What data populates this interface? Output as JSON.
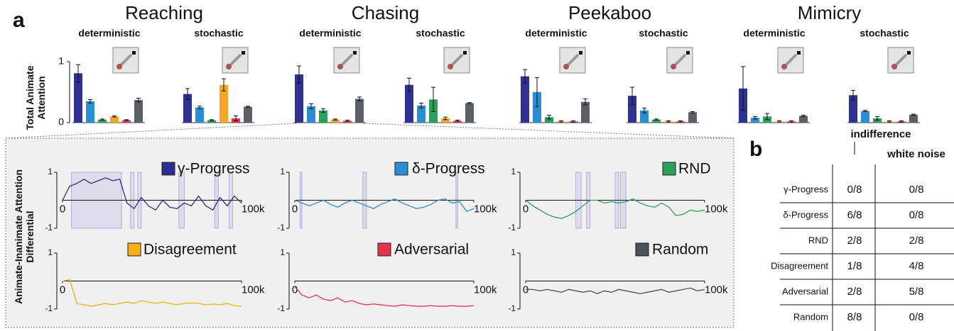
{
  "panel_labels": [
    "a",
    "b"
  ],
  "task_titles": [
    "Reaching",
    "Chasing",
    "Peekaboo",
    "Mimicry"
  ],
  "chart_data": [
    {
      "type": "bar",
      "title": "deterministic",
      "ylabel": "Total Animate Attention",
      "ylim": [
        0,
        1
      ],
      "yticks": [
        0,
        1
      ],
      "values": [
        0.81,
        0.35,
        0.05,
        0.1,
        0.04,
        0.37
      ],
      "errors": [
        0.14,
        0.03,
        0.01,
        0.01,
        0.01,
        0.03
      ],
      "colors": [
        "#2e3192",
        "#2a8fd0",
        "#2ca05a",
        "#f5a623",
        "#e5344d",
        "#5a6066"
      ]
    },
    {
      "type": "bar",
      "title": "stochastic",
      "ylim": [
        0,
        1
      ],
      "values": [
        0.47,
        0.25,
        0.04,
        0.62,
        0.07,
        0.26
      ],
      "errors": [
        0.09,
        0.02,
        0.01,
        0.1,
        0.04,
        0.01
      ],
      "colors": [
        "#2e3192",
        "#2a8fd0",
        "#2ca05a",
        "#f5a623",
        "#e5344d",
        "#5a6066"
      ]
    },
    {
      "type": "bar",
      "title": "deterministic",
      "ylim": [
        0,
        1
      ],
      "values": [
        0.79,
        0.27,
        0.2,
        0.05,
        0.03,
        0.39
      ],
      "errors": [
        0.14,
        0.04,
        0.03,
        0.01,
        0.01,
        0.03
      ],
      "colors": [
        "#2e3192",
        "#2a8fd0",
        "#2ca05a",
        "#f5a623",
        "#e5344d",
        "#5a6066"
      ]
    },
    {
      "type": "bar",
      "title": "stochastic",
      "ylim": [
        0,
        1
      ],
      "values": [
        0.62,
        0.28,
        0.38,
        0.07,
        0.03,
        0.32
      ],
      "errors": [
        0.11,
        0.04,
        0.2,
        0.02,
        0.01,
        0.01
      ],
      "colors": [
        "#2e3192",
        "#2a8fd0",
        "#2ca05a",
        "#f5a623",
        "#e5344d",
        "#5a6066"
      ]
    },
    {
      "type": "bar",
      "title": "deterministic",
      "ylim": [
        0,
        1
      ],
      "values": [
        0.76,
        0.5,
        0.09,
        0.02,
        0.02,
        0.34
      ],
      "errors": [
        0.11,
        0.24,
        0.03,
        0.01,
        0.01,
        0.05
      ],
      "colors": [
        "#2e3192",
        "#2a8fd0",
        "#2ca05a",
        "#f5a623",
        "#e5344d",
        "#5a6066"
      ]
    },
    {
      "type": "bar",
      "title": "stochastic",
      "ylim": [
        0,
        1
      ],
      "values": [
        0.44,
        0.2,
        0.05,
        0.02,
        0.02,
        0.17
      ],
      "errors": [
        0.14,
        0.04,
        0.01,
        0.01,
        0.01,
        0.01
      ],
      "colors": [
        "#2e3192",
        "#2a8fd0",
        "#2ca05a",
        "#f5a623",
        "#e5344d",
        "#5a6066"
      ]
    },
    {
      "type": "bar",
      "title": "deterministic",
      "ylim": [
        0,
        1
      ],
      "values": [
        0.56,
        0.08,
        0.1,
        0.02,
        0.02,
        0.11
      ],
      "errors": [
        0.36,
        0.02,
        0.05,
        0.01,
        0.01,
        0.01
      ],
      "colors": [
        "#2e3192",
        "#2a8fd0",
        "#2ca05a",
        "#f5a623",
        "#e5344d",
        "#5a6066"
      ]
    },
    {
      "type": "bar",
      "title": "stochastic",
      "ylim": [
        0,
        1
      ],
      "values": [
        0.45,
        0.19,
        0.07,
        0.02,
        0.02,
        0.13
      ],
      "errors": [
        0.08,
        0.01,
        0.03,
        0.01,
        0.01,
        0.01
      ],
      "colors": [
        "#2e3192",
        "#2a8fd0",
        "#2ca05a",
        "#f5a623",
        "#e5344d",
        "#5a6066"
      ]
    },
    {
      "type": "line",
      "ylabel": "Animate-Inanimate Attention Differential",
      "xlim": [
        0,
        100000
      ],
      "ylim": [
        -1,
        1
      ],
      "yticks": [
        -1,
        1
      ],
      "xticks": [
        0,
        {
          "value": 100000,
          "label": "100k"
        }
      ],
      "x": [
        0,
        4000,
        8000,
        12000,
        16000,
        20000,
        24000,
        28000,
        32000,
        36000,
        40000,
        44000,
        48000,
        52000,
        56000,
        60000,
        64000,
        68000,
        72000,
        76000,
        80000,
        84000,
        88000,
        92000,
        96000,
        100000
      ],
      "series": [
        {
          "name": "γ-Progress",
          "color": "#2e2d8f",
          "values": [
            0,
            0.5,
            0.6,
            0.75,
            0.6,
            0.7,
            0.8,
            0.7,
            0.75,
            -0.1,
            -0.3,
            0.1,
            -0.2,
            -0.35,
            0.0,
            -0.25,
            -0.3,
            -0.1,
            -0.2,
            0.15,
            -0.2,
            -0.35,
            0.1,
            -0.2,
            0.15,
            -0.1
          ]
        }
      ],
      "highlights": [
        [
          5000,
          33000
        ],
        [
          38000,
          40000
        ],
        [
          42000,
          44000
        ],
        [
          65000,
          68000
        ],
        [
          85000,
          87000
        ],
        [
          93000,
          95000
        ]
      ]
    },
    {
      "type": "line",
      "xlim": [
        0,
        100000
      ],
      "ylim": [
        -1,
        1
      ],
      "yticks": [
        -1,
        1
      ],
      "xticks": [
        0,
        {
          "value": 100000,
          "label": "100k"
        }
      ],
      "x": [
        0,
        4000,
        8000,
        12000,
        16000,
        20000,
        24000,
        28000,
        32000,
        36000,
        40000,
        44000,
        48000,
        52000,
        56000,
        60000,
        64000,
        68000,
        72000,
        76000,
        80000,
        84000,
        88000,
        92000,
        96000,
        100000
      ],
      "series": [
        {
          "name": "δ-Progress",
          "color": "#2a8fd0",
          "values": [
            0,
            -0.1,
            -0.2,
            -0.1,
            0,
            -0.15,
            -0.25,
            -0.1,
            0.0,
            -0.1,
            -0.2,
            -0.3,
            -0.15,
            -0.05,
            0.05,
            -0.1,
            -0.2,
            -0.3,
            -0.25,
            -0.15,
            0,
            0.05,
            -0.1,
            -0.05,
            -0.4,
            -0.3
          ]
        }
      ],
      "highlights": [
        [
          3000,
          4000
        ],
        [
          38000,
          40000
        ],
        [
          90000,
          91000
        ]
      ]
    },
    {
      "type": "line",
      "xlim": [
        0,
        100000
      ],
      "ylim": [
        -1,
        1
      ],
      "yticks": [
        -1,
        1
      ],
      "xticks": [
        0,
        {
          "value": 100000,
          "label": "100k"
        }
      ],
      "x": [
        0,
        4000,
        8000,
        12000,
        16000,
        20000,
        24000,
        28000,
        32000,
        36000,
        40000,
        44000,
        48000,
        52000,
        56000,
        60000,
        64000,
        68000,
        72000,
        76000,
        80000,
        84000,
        88000,
        92000,
        96000,
        100000
      ],
      "series": [
        {
          "name": "RND",
          "color": "#2ca05a",
          "values": [
            0,
            -0.2,
            -0.35,
            -0.5,
            -0.6,
            -0.65,
            -0.55,
            -0.4,
            -0.2,
            0,
            0.0,
            -0.1,
            -0.05,
            -0.1,
            -0.05,
            0.05,
            -0.1,
            -0.2,
            -0.25,
            -0.1,
            -0.25,
            -0.55,
            -0.5,
            -0.35,
            -0.4,
            -0.35
          ]
        }
      ],
      "highlights": [
        [
          28000,
          31000
        ],
        [
          34000,
          36000
        ],
        [
          50000,
          52000
        ],
        [
          53000,
          56000
        ]
      ]
    },
    {
      "type": "line",
      "xlim": [
        0,
        100000
      ],
      "ylim": [
        -1,
        1
      ],
      "yticks": [
        -1,
        1
      ],
      "xticks": [
        0,
        {
          "value": 100000,
          "label": "100k"
        }
      ],
      "x": [
        0,
        4000,
        8000,
        12000,
        16000,
        20000,
        24000,
        28000,
        32000,
        36000,
        40000,
        44000,
        48000,
        52000,
        56000,
        60000,
        64000,
        68000,
        72000,
        76000,
        80000,
        84000,
        88000,
        92000,
        96000,
        100000
      ],
      "series": [
        {
          "name": "Disagreement",
          "color": "#f5b014",
          "values": [
            0,
            0.05,
            -0.8,
            -0.85,
            -0.9,
            -0.85,
            -0.8,
            -0.85,
            -0.8,
            -0.75,
            -0.8,
            -0.7,
            -0.75,
            -0.8,
            -0.75,
            -0.8,
            -0.85,
            -0.8,
            -0.78,
            -0.8,
            -0.85,
            -0.82,
            -0.85,
            -0.8,
            -0.88,
            -0.9
          ]
        }
      ]
    },
    {
      "type": "line",
      "xlim": [
        0,
        100000
      ],
      "ylim": [
        -1,
        1
      ],
      "yticks": [
        -1,
        1
      ],
      "xticks": [
        0,
        {
          "value": 100000,
          "label": "100k"
        }
      ],
      "x": [
        0,
        4000,
        8000,
        12000,
        16000,
        20000,
        24000,
        28000,
        32000,
        36000,
        40000,
        44000,
        48000,
        52000,
        56000,
        60000,
        64000,
        68000,
        72000,
        76000,
        80000,
        84000,
        88000,
        92000,
        96000,
        100000
      ],
      "series": [
        {
          "name": "Adversarial",
          "color": "#e5344d",
          "values": [
            -0.2,
            -0.5,
            -0.6,
            -0.5,
            -0.65,
            -0.7,
            -0.6,
            -0.75,
            -0.7,
            -0.8,
            -0.85,
            -0.82,
            -0.85,
            -0.88,
            -0.9,
            -0.85,
            -0.88,
            -0.9,
            -0.9,
            -0.88,
            -0.9,
            -0.9,
            -0.88,
            -0.9,
            -0.9,
            -0.88
          ]
        }
      ]
    },
    {
      "type": "line",
      "xlim": [
        0,
        100000
      ],
      "ylim": [
        -1,
        1
      ],
      "yticks": [
        -1,
        1
      ],
      "xticks": [
        0,
        {
          "value": 100000,
          "label": "100k"
        }
      ],
      "x": [
        0,
        4000,
        8000,
        12000,
        16000,
        20000,
        24000,
        28000,
        32000,
        36000,
        40000,
        44000,
        48000,
        52000,
        56000,
        60000,
        64000,
        68000,
        72000,
        76000,
        80000,
        84000,
        88000,
        92000,
        96000,
        100000
      ],
      "series": [
        {
          "name": "Random",
          "color": "#4a5258",
          "values": [
            -0.3,
            -0.3,
            -0.35,
            -0.3,
            -0.35,
            -0.4,
            -0.3,
            -0.35,
            -0.4,
            -0.35,
            -0.45,
            -0.35,
            -0.4,
            -0.3,
            -0.35,
            -0.4,
            -0.45,
            -0.4,
            -0.35,
            -0.3,
            -0.4,
            -0.35,
            -0.3,
            -0.25,
            -0.35,
            -0.3
          ]
        }
      ]
    }
  ],
  "table": {
    "columns": [
      "indifference",
      "white noise"
    ],
    "rows": [
      [
        "γ-Progress",
        "0/8",
        "0/8"
      ],
      [
        "δ-Progress",
        "6/8",
        "0/8"
      ],
      [
        "RND",
        "2/8",
        "2/8"
      ],
      [
        "Disagreement",
        "1/8",
        "4/8"
      ],
      [
        "Adversarial",
        "2/8",
        "5/8"
      ],
      [
        "Random",
        "8/8",
        "0/8"
      ]
    ],
    "row_colors": [
      "#2e3192",
      "#4f8fd6",
      "#2ca05a",
      "#f5a623",
      "#e5344d",
      "#8a8f94"
    ]
  }
}
